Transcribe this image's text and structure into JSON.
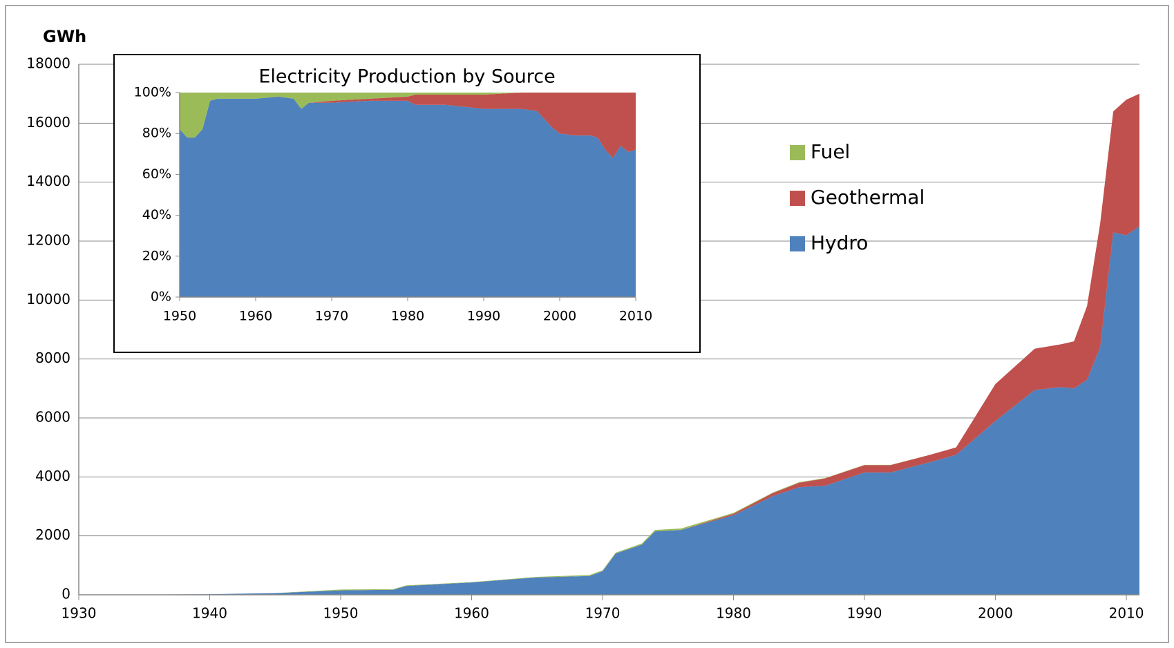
{
  "chart_data": [
    {
      "type": "area",
      "ylabel": "GWh",
      "x": [
        1930,
        1935,
        1940,
        1945,
        1950,
        1954,
        1955,
        1960,
        1965,
        1969,
        1970,
        1971,
        1973,
        1974,
        1976,
        1980,
        1983,
        1985,
        1987,
        1990,
        1992,
        1995,
        1997,
        2000,
        2003,
        2005,
        2006,
        2007,
        2008,
        2009,
        2010,
        2011
      ],
      "series": [
        {
          "name": "Hydro",
          "color": "#4f81bd",
          "values": [
            0,
            10,
            20,
            60,
            150,
            170,
            300,
            420,
            590,
            640,
            800,
            1400,
            1700,
            2150,
            2200,
            2700,
            3350,
            3650,
            3700,
            4150,
            4150,
            4500,
            4750,
            5900,
            6950,
            7050,
            7000,
            7300,
            8400,
            12300,
            12200,
            12500
          ]
        },
        {
          "name": "Geothermal",
          "color": "#c0504d",
          "values": [
            0,
            0,
            0,
            0,
            0,
            0,
            0,
            0,
            0,
            0,
            0,
            0,
            0,
            0,
            0,
            50,
            100,
            150,
            250,
            250,
            250,
            250,
            250,
            1250,
            1400,
            1450,
            1600,
            2500,
            4200,
            4100,
            4600,
            4500
          ]
        },
        {
          "name": "Fuel",
          "color": "#9bbb59",
          "values": [
            0,
            0,
            0,
            0,
            30,
            20,
            20,
            10,
            20,
            30,
            30,
            30,
            40,
            50,
            50,
            30,
            20,
            20,
            10,
            10,
            10,
            0,
            0,
            0,
            0,
            0,
            0,
            0,
            0,
            0,
            0,
            0
          ]
        }
      ],
      "xlim": [
        1930,
        2011
      ],
      "xticks": [
        1930,
        1940,
        1950,
        1960,
        1970,
        1980,
        1990,
        2000,
        2010
      ],
      "ylim": [
        0,
        18000
      ],
      "yticks": [
        0,
        2000,
        4000,
        6000,
        8000,
        10000,
        12000,
        14000,
        16000,
        18000
      ],
      "grid": true,
      "legend": "right"
    },
    {
      "type": "area",
      "title": "Electricity Production by Source",
      "x": [
        1950,
        1951,
        1952,
        1953,
        1954,
        1955,
        1960,
        1963,
        1965,
        1966,
        1967,
        1970,
        1975,
        1980,
        1981,
        1985,
        1990,
        1995,
        1997,
        1999,
        2000,
        2002,
        2004,
        2005,
        2006,
        2007,
        2008,
        2009,
        2010
      ],
      "series": [
        {
          "color": "#4f81bd",
          "values": [
            82,
            78,
            78,
            82,
            96,
            97,
            97,
            98,
            97,
            92,
            95,
            95,
            96,
            96,
            94,
            94,
            92,
            92,
            91,
            83,
            80,
            79,
            79,
            78,
            72,
            68,
            74,
            71,
            72
          ]
        },
        {
          "color": "#c0504d",
          "values": [
            0,
            0,
            0,
            0,
            0,
            0,
            0,
            0,
            0,
            0,
            0,
            1,
            1,
            2,
            5,
            5,
            7,
            8,
            9,
            17,
            20,
            21,
            21,
            22,
            28,
            32,
            26,
            29,
            28
          ]
        },
        {
          "color": "#9bbb59",
          "values": [
            18,
            22,
            22,
            18,
            4,
            3,
            3,
            2,
            3,
            8,
            5,
            4,
            3,
            2,
            1,
            1,
            1,
            0,
            0,
            0,
            0,
            0,
            0,
            0,
            0,
            0,
            0,
            0,
            0
          ]
        }
      ],
      "xlim": [
        1950,
        2010
      ],
      "xticks": [
        1950,
        1960,
        1970,
        1980,
        1990,
        2000,
        2010
      ],
      "ylim": [
        0,
        100
      ],
      "yticks": [
        {
          "value": 0,
          "label": "0%"
        },
        {
          "value": 20,
          "label": "20%"
        },
        {
          "value": 40,
          "label": "40%"
        },
        {
          "value": 60,
          "label": "60%"
        },
        {
          "value": 80,
          "label": "80%"
        },
        {
          "value": 100,
          "label": "100%"
        }
      ],
      "grid": false
    }
  ]
}
